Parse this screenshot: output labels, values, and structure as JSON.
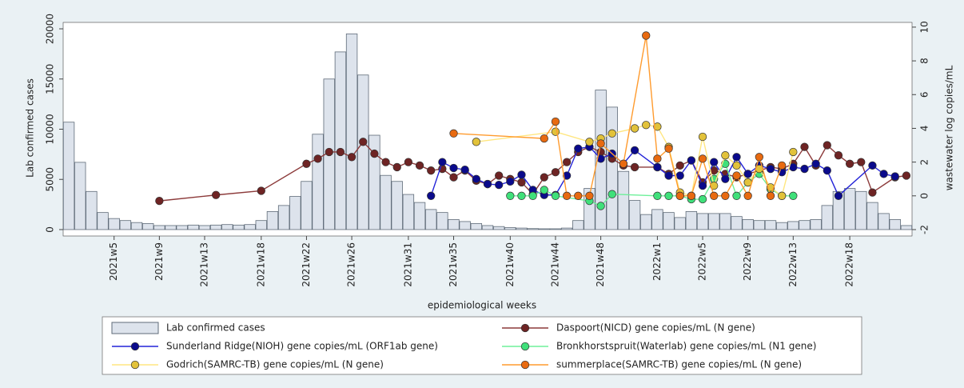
{
  "chart_data": {
    "type": "bar",
    "y_label": "Lab  confirmed cases",
    "y2_label": "wastewater log copies/mL",
    "x_label": "epidemiological weeks",
    "categories": [
      null,
      null,
      null,
      null,
      "2021w5",
      null,
      null,
      null,
      "2021w9",
      null,
      null,
      null,
      "2021w13",
      null,
      null,
      null,
      null,
      "2021w18",
      null,
      null,
      null,
      "2021w22",
      null,
      null,
      null,
      "2021w26",
      null,
      null,
      null,
      null,
      "2021w31",
      null,
      null,
      null,
      "2021w35",
      null,
      null,
      null,
      null,
      "2021w40",
      null,
      null,
      null,
      "2021w44",
      null,
      null,
      null,
      "2021w48",
      null,
      null,
      null,
      null,
      "2022w1",
      null,
      null,
      null,
      "2022w5",
      null,
      null,
      null,
      "2022w9",
      null,
      null,
      null,
      "2022w13",
      null,
      null,
      null,
      null,
      "2022w18",
      null,
      null,
      null,
      null,
      null
    ],
    "ylim": [
      -640,
      20640
    ],
    "yticks": [
      0,
      5000,
      10000,
      15000,
      20000
    ],
    "y2lim": [
      -2.38,
      10.28
    ],
    "y2ticks": [
      -2,
      0,
      2,
      4,
      6,
      8,
      10
    ],
    "grid": false,
    "series": [
      {
        "name": "Lab  confirmed cases",
        "type": "bar",
        "color": "#dde3ec",
        "edge": "#5f6b78",
        "values": [
          10700,
          6700,
          3800,
          1700,
          1100,
          900,
          700,
          600,
          400,
          400,
          400,
          450,
          400,
          450,
          500,
          450,
          500,
          900,
          1800,
          2400,
          3300,
          4800,
          9500,
          15000,
          17700,
          19500,
          15400,
          9400,
          5400,
          4800,
          3500,
          2700,
          2000,
          1700,
          1000,
          800,
          600,
          400,
          300,
          200,
          150,
          100,
          80,
          80,
          150,
          900,
          4100,
          13900,
          12200,
          5800,
          2900,
          1500,
          2000,
          1700,
          1200,
          1800,
          1600,
          1600,
          1600,
          1300,
          1000,
          900,
          900,
          700,
          800,
          900,
          1000,
          2400,
          3800,
          4100,
          3800,
          2700,
          1600,
          1000,
          400
        ]
      },
      {
        "name": "Daspoort(NICD) gene copies/mL (N gene)",
        "type": "line",
        "axis": "y2",
        "color": "#8c3a3a",
        "marker": "#6e2424",
        "x": [
          "2021w9",
          "2021w14",
          "2021w18",
          "2021w22",
          "2021w23",
          "2021w24",
          "2021w25",
          "2021w26",
          "2021w27",
          "2021w28",
          "2021w29",
          "2021w30",
          "2021w31",
          "2021w32",
          "2021w33",
          "2021w34",
          "2021w35",
          "2021w36",
          "2021w37",
          "2021w38",
          "2021w39",
          "2021w40",
          "2021w41",
          "2021w42",
          "2021w43",
          "2021w44",
          "2021w45",
          "2021w46",
          "2021w47",
          "2021w48",
          "2021w49",
          "2021w50",
          "2021w51",
          "2022w1",
          "2022w2",
          "2022w3",
          "2022w4",
          "2022w5",
          "2022w6",
          "2022w7",
          "2022w8",
          "2022w9",
          "2022w10",
          "2022w11",
          "2022w12",
          "2022w13",
          "2022w14",
          "2022w15",
          "2022w16",
          "2022w17",
          "2022w18",
          "2022w19",
          "2022w20",
          "2022w22",
          "2022w23"
        ],
        "values": [
          -0.3,
          0.05,
          0.3,
          1.9,
          2.2,
          2.6,
          2.6,
          2.3,
          3.2,
          2.5,
          2.0,
          1.7,
          2.0,
          1.8,
          1.5,
          1.6,
          1.1,
          1.5,
          0.9,
          0.7,
          1.2,
          1.0,
          0.8,
          0.1,
          1.1,
          1.4,
          2.0,
          2.6,
          2.9,
          2.6,
          2.2,
          1.8,
          1.7,
          1.7,
          1.3,
          1.8,
          2.1,
          0.8,
          1.5,
          1.3,
          1.1,
          1.3,
          1.5,
          1.7,
          1.6,
          1.9,
          2.9,
          1.8,
          3.0,
          2.4,
          1.9,
          2.0,
          0.2,
          1.1,
          1.2
        ]
      },
      {
        "name": "Sunderland Ridge(NIOH) gene copies/mL (ORF1ab gene)",
        "type": "line",
        "axis": "y2",
        "color": "#2323d8",
        "marker": "#0a0a8c",
        "x": [
          "2021w33",
          "2021w34",
          "2021w35",
          "2021w36",
          "2021w37",
          "2021w38",
          "2021w39",
          "2021w40",
          "2021w41",
          "2021w42",
          "2021w43",
          "2021w44",
          "2021w45",
          "2021w46",
          "2021w47",
          "2021w48",
          "2021w49",
          "2021w50",
          "2021w51",
          "2022w1",
          "2022w2",
          "2022w3",
          "2022w4",
          "2022w5",
          "2022w6",
          "2022w7",
          "2022w8",
          "2022w9",
          "2022w10",
          "2022w11",
          "2022w12",
          "2022w13",
          "2022w14",
          "2022w15",
          "2022w16",
          "2022w17",
          "2022w20",
          "2022w21",
          "2022w22"
        ],
        "values": [
          0.0,
          2.0,
          1.65,
          1.55,
          1.0,
          0.7,
          0.65,
          0.85,
          1.25,
          0.35,
          0.05,
          0.05,
          1.2,
          2.8,
          2.9,
          2.2,
          2.5,
          1.9,
          2.7,
          1.7,
          1.2,
          1.2,
          2.1,
          0.6,
          2.0,
          1.0,
          2.3,
          1.3,
          1.8,
          1.6,
          1.4,
          1.7,
          1.6,
          1.9,
          1.5,
          0.0,
          1.8,
          1.3,
          1.15
        ]
      },
      {
        "name": "Bronkhorstspruit(Waterlab) gene copies/mL (N1 gene)",
        "type": "line",
        "axis": "y2",
        "color": "#6ef09a",
        "marker": "#3fe07a",
        "x": [
          "2021w40",
          "2021w41",
          "2021w42",
          "2021w43",
          "2021w44",
          "2021w47",
          "2021w48",
          "2021w49",
          "2022w1",
          "2022w2",
          "2022w3",
          "2022w4",
          "2022w5",
          "2022w6",
          "2022w7",
          "2022w8",
          "2022w9",
          "2022w10",
          "2022w11",
          "2022w12",
          "2022w13"
        ],
        "values": [
          0,
          0,
          0,
          0.35,
          0,
          -0.3,
          -0.6,
          0.1,
          0,
          0,
          0,
          -0.2,
          -0.2,
          1.0,
          1.9,
          0.0,
          0.8,
          1.3,
          0.4,
          0.0,
          0.0
        ]
      },
      {
        "name": "Godrich(SAMRC-TB) gene copies/mL (N gene)",
        "type": "line",
        "axis": "y2",
        "color": "#ffe680",
        "marker": "#e2c23a",
        "x": [
          "2021w37",
          "2021w44",
          "2021w47",
          "2021w48",
          "2021w49",
          "2021w51",
          "2021w52",
          "2022w1",
          "2022w2",
          "2022w3",
          "2022w4",
          "2022w5",
          "2022w6",
          "2022w7",
          "2022w8",
          "2022w9",
          "2022w10",
          "2022w11",
          "2022w12",
          "2022w13"
        ],
        "values": [
          3.2,
          3.8,
          3.2,
          3.4,
          3.7,
          4.0,
          4.2,
          4.1,
          2.9,
          0.2,
          0.0,
          3.5,
          0.6,
          2.4,
          1.8,
          0.8,
          1.6,
          0.5,
          0.0,
          2.6
        ]
      },
      {
        "name": "summerplace(SAMRC-TB) gene copies/mL (N gene)",
        "type": "line",
        "axis": "y2",
        "color": "#ff9b2e",
        "marker": "#e86a10",
        "x": [
          "2021w35",
          "2021w43",
          "2021w44",
          "2021w45",
          "2021w46",
          "2021w47",
          "2021w48",
          "2021w50",
          "2021w52",
          "2022w1",
          "2022w2",
          "2022w3",
          "2022w4",
          "2022w5",
          "2022w6",
          "2022w7",
          "2022w8",
          "2022w9",
          "2022w10",
          "2022w11",
          "2022w12"
        ],
        "values": [
          3.7,
          3.4,
          4.4,
          0,
          0,
          0,
          3.1,
          1.9,
          9.5,
          2.2,
          2.8,
          0,
          0,
          2.2,
          0,
          0,
          1.2,
          0,
          2.3,
          0,
          1.8
        ]
      }
    ]
  }
}
